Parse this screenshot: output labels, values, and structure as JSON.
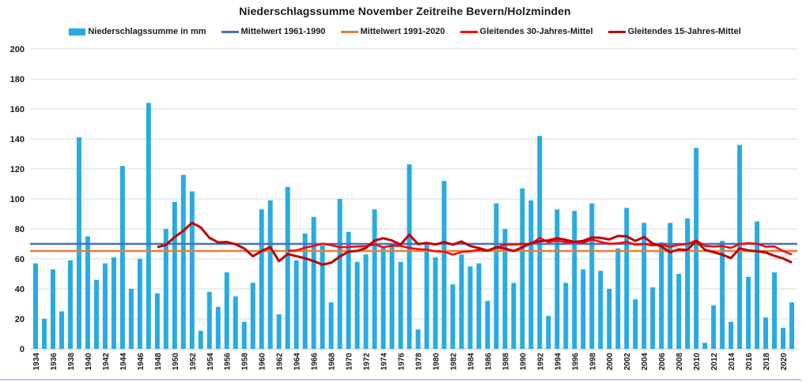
{
  "chart_data": {
    "type": "bar",
    "title": "Niederschlagssumme November Zeitreihe Bevern/Holzminden",
    "xlabel": "",
    "ylabel": "",
    "unit": "mm",
    "ylim": [
      0,
      200
    ],
    "yticks": [
      0,
      20,
      40,
      60,
      80,
      100,
      120,
      140,
      160,
      180,
      200
    ],
    "xtick_step": 2,
    "grid": true,
    "legend_position": "top",
    "years": [
      1934,
      1935,
      1936,
      1937,
      1938,
      1939,
      1940,
      1941,
      1942,
      1943,
      1944,
      1945,
      1946,
      1947,
      1948,
      1949,
      1950,
      1951,
      1952,
      1953,
      1954,
      1955,
      1956,
      1957,
      1958,
      1959,
      1960,
      1961,
      1962,
      1963,
      1964,
      1965,
      1966,
      1967,
      1968,
      1969,
      1970,
      1971,
      1972,
      1973,
      1974,
      1975,
      1976,
      1977,
      1978,
      1979,
      1980,
      1981,
      1982,
      1983,
      1984,
      1985,
      1986,
      1987,
      1988,
      1989,
      1990,
      1991,
      1992,
      1993,
      1994,
      1995,
      1996,
      1997,
      1998,
      1999,
      2000,
      2001,
      2002,
      2003,
      2004,
      2005,
      2006,
      2007,
      2008,
      2009,
      2010,
      2011,
      2012,
      2013,
      2014,
      2015,
      2016,
      2017,
      2018,
      2019,
      2020,
      2021
    ],
    "values": [
      57,
      20,
      53,
      25,
      59,
      141,
      75,
      46,
      57,
      61,
      122,
      40,
      60,
      164,
      37,
      80,
      98,
      116,
      105,
      12,
      38,
      28,
      51,
      35,
      18,
      44,
      93,
      99,
      23,
      108,
      59,
      77,
      88,
      69,
      31,
      100,
      78,
      58,
      63,
      93,
      68,
      70,
      58,
      123,
      13,
      71,
      61,
      112,
      43,
      63,
      55,
      57,
      32,
      97,
      80,
      44,
      107,
      99,
      142,
      22,
      93,
      44,
      92,
      53,
      97,
      52,
      40,
      67,
      94,
      33,
      84,
      41,
      71,
      84,
      50,
      87,
      134,
      4,
      29,
      72,
      18,
      136,
      48,
      85,
      21,
      51,
      14,
      31
    ],
    "series": [
      {
        "name": "Niederschlagssumme in mm",
        "type": "bar",
        "color": "#29ABE2"
      },
      {
        "name": "Mittelwert 1961-1990",
        "type": "mean-line",
        "color": "#4472C4",
        "year_range": [
          1961,
          1990
        ],
        "mean_value": 70
      },
      {
        "name": "Mittelwert 1991-2020",
        "type": "mean-line",
        "color": "#ED7D31",
        "year_range": [
          1991,
          2020
        ],
        "mean_value": 65.2
      },
      {
        "name": "Gleitendes 30-Jahres-Mittel",
        "type": "trailing-moving-mean",
        "color": "#FF0000",
        "window": 30
      },
      {
        "name": "Gleitendes 15-Jahres-Mittel",
        "type": "trailing-moving-mean",
        "color": "#C00000",
        "window": 15
      }
    ]
  }
}
